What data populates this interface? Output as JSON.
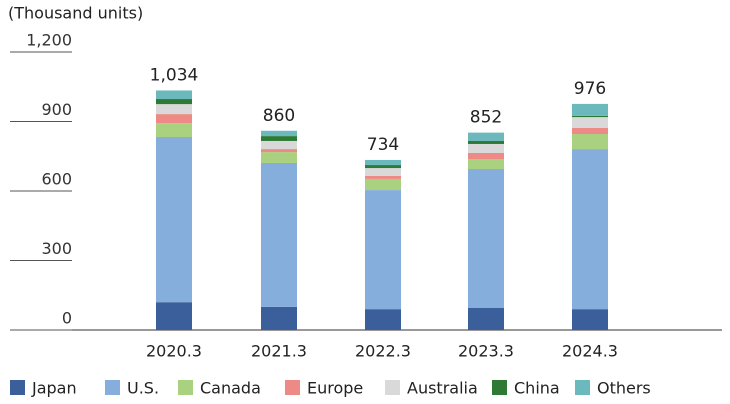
{
  "chart_data": {
    "type": "stacked_bar",
    "subtitle": "(Thousand units)",
    "categories": [
      "2020.3",
      "2021.3",
      "2022.3",
      "2023.3",
      "2024.3"
    ],
    "series": [
      {
        "name": "Japan",
        "color": "#3a5f9a",
        "values": [
          120,
          100,
          90,
          95,
          90
        ]
      },
      {
        "name": "U.S.",
        "color": "#86aedd",
        "values": [
          713,
          621,
          514,
          600,
          691
        ]
      },
      {
        "name": "Canada",
        "color": "#a9d17f",
        "values": [
          60,
          47,
          48,
          43,
          65
        ]
      },
      {
        "name": "Europe",
        "color": "#ee8a85",
        "values": [
          39,
          13,
          13,
          26,
          26
        ]
      },
      {
        "name": "Australia",
        "color": "#d9d9d9",
        "values": [
          43,
          35,
          34,
          39,
          47
        ]
      },
      {
        "name": "China",
        "color": "#2e7a35",
        "values": [
          22,
          21,
          13,
          13,
          5
        ]
      },
      {
        "name": "Others",
        "color": "#6bb8bd",
        "values": [
          37,
          23,
          22,
          36,
          52
        ]
      }
    ],
    "totals": [
      1034,
      860,
      734,
      852,
      976
    ],
    "total_labels": [
      "1,034",
      "860",
      "734",
      "852",
      "976"
    ],
    "ylim": [
      0,
      1200
    ],
    "yticks": [
      0,
      300,
      600,
      900,
      {
        "value": 1200,
        "label": "1,200"
      }
    ],
    "legend": "bottom"
  }
}
